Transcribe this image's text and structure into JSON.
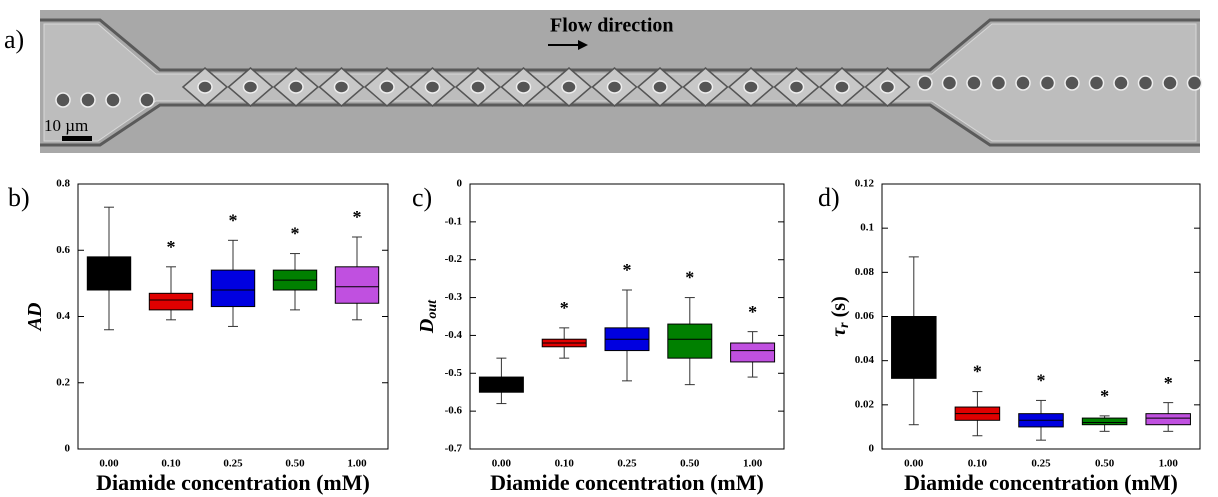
{
  "image_panel": {
    "label": "a)",
    "caption": "Flow direction",
    "scale_bar": "10 µm"
  },
  "chart_data": [
    {
      "type": "box",
      "label": "b)",
      "x_label": "Diamide concentration (mM)",
      "y_label": {
        "text": "AD"
      },
      "categories": [
        "0.00",
        "0.10",
        "0.25",
        "0.50",
        "1.00"
      ],
      "ylim": [
        0,
        0.8
      ],
      "yticks": [
        0,
        0.2,
        0.4,
        0.6,
        0.8
      ],
      "boxes": [
        {
          "color": "#000000",
          "whisker_low": 0.36,
          "q1": 0.48,
          "median": 0.53,
          "q3": 0.58,
          "whisker_high": 0.73
        },
        {
          "color": "#e00000",
          "whisker_low": 0.39,
          "q1": 0.42,
          "median": 0.45,
          "q3": 0.47,
          "whisker_high": 0.55
        },
        {
          "color": "#0000e0",
          "whisker_low": 0.37,
          "q1": 0.43,
          "median": 0.48,
          "q3": 0.54,
          "whisker_high": 0.63
        },
        {
          "color": "#008000",
          "whisker_low": 0.42,
          "q1": 0.48,
          "median": 0.51,
          "q3": 0.54,
          "whisker_high": 0.59
        },
        {
          "color": "#c050e0",
          "whisker_low": 0.39,
          "q1": 0.44,
          "median": 0.49,
          "q3": 0.55,
          "whisker_high": 0.64
        }
      ],
      "annotations": [
        {
          "x": "0.10",
          "text": "*"
        },
        {
          "x": "0.25",
          "text": "*"
        },
        {
          "x": "0.50",
          "text": "*"
        },
        {
          "x": "1.00",
          "text": "*"
        }
      ]
    },
    {
      "type": "box",
      "label": "c)",
      "x_label": "Diamide concentration (mM)",
      "y_label": {
        "text": "D",
        "subscript": "out"
      },
      "categories": [
        "0.00",
        "0.10",
        "0.25",
        "0.50",
        "1.00"
      ],
      "ylim": [
        -0.7,
        0
      ],
      "yticks": [
        0,
        -0.1,
        -0.2,
        -0.3,
        -0.4,
        -0.5,
        -0.6,
        -0.7
      ],
      "boxes": [
        {
          "color": "#000000",
          "whisker_low": -0.58,
          "q1": -0.55,
          "median": -0.53,
          "q3": -0.51,
          "whisker_high": -0.46
        },
        {
          "color": "#e00000",
          "whisker_low": -0.46,
          "q1": -0.43,
          "median": -0.42,
          "q3": -0.41,
          "whisker_high": -0.38
        },
        {
          "color": "#0000e0",
          "whisker_low": -0.52,
          "q1": -0.44,
          "median": -0.41,
          "q3": -0.38,
          "whisker_high": -0.28
        },
        {
          "color": "#008000",
          "whisker_low": -0.53,
          "q1": -0.46,
          "median": -0.41,
          "q3": -0.37,
          "whisker_high": -0.3
        },
        {
          "color": "#c050e0",
          "whisker_low": -0.51,
          "q1": -0.47,
          "median": -0.44,
          "q3": -0.42,
          "whisker_high": -0.39
        }
      ],
      "annotations": [
        {
          "x": "0.10",
          "text": "*"
        },
        {
          "x": "0.25",
          "text": "*"
        },
        {
          "x": "0.50",
          "text": "*"
        },
        {
          "x": "1.00",
          "text": "*"
        }
      ]
    },
    {
      "type": "box",
      "label": "d)",
      "x_label": "Diamide concentration (mM)",
      "y_label": {
        "text": "τ",
        "subscript": "r",
        "suffix": " (s)"
      },
      "categories": [
        "0.00",
        "0.10",
        "0.25",
        "0.50",
        "1.00"
      ],
      "ylim": [
        0,
        0.12
      ],
      "yticks": [
        0,
        0.02,
        0.04,
        0.06,
        0.08,
        0.1,
        0.12
      ],
      "boxes": [
        {
          "color": "#000000",
          "whisker_low": 0.011,
          "q1": 0.032,
          "median": 0.045,
          "q3": 0.06,
          "whisker_high": 0.087
        },
        {
          "color": "#e00000",
          "whisker_low": 0.006,
          "q1": 0.013,
          "median": 0.016,
          "q3": 0.019,
          "whisker_high": 0.026
        },
        {
          "color": "#0000e0",
          "whisker_low": 0.004,
          "q1": 0.01,
          "median": 0.013,
          "q3": 0.016,
          "whisker_high": 0.022
        },
        {
          "color": "#008000",
          "whisker_low": 0.008,
          "q1": 0.011,
          "median": 0.012,
          "q3": 0.014,
          "whisker_high": 0.015
        },
        {
          "color": "#c050e0",
          "whisker_low": 0.008,
          "q1": 0.011,
          "median": 0.014,
          "q3": 0.016,
          "whisker_high": 0.021
        }
      ],
      "annotations": [
        {
          "x": "0.10",
          "text": "*"
        },
        {
          "x": "0.25",
          "text": "*"
        },
        {
          "x": "0.50",
          "text": "*"
        },
        {
          "x": "1.00",
          "text": "*"
        }
      ]
    }
  ]
}
